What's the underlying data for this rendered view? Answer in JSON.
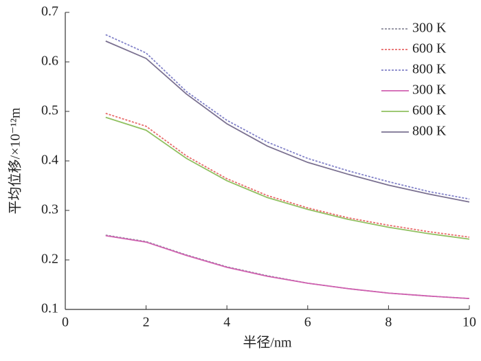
{
  "chart_data": {
    "type": "line",
    "x_label": "半径/nm",
    "y_label": "平均位移/×10⁻¹²m",
    "x": [
      1,
      2,
      3,
      4,
      5,
      6,
      7,
      8,
      9,
      10
    ],
    "series": [
      {
        "name": "300 K",
        "color": "#8a8a9a",
        "dashed": true,
        "values": [
          0.25,
          0.237,
          0.21,
          0.186,
          0.168,
          0.153,
          0.142,
          0.133,
          0.127,
          0.122
        ]
      },
      {
        "name": "600 K",
        "color": "#e86a6a",
        "dashed": true,
        "values": [
          0.496,
          0.47,
          0.41,
          0.364,
          0.33,
          0.305,
          0.285,
          0.27,
          0.257,
          0.246
        ]
      },
      {
        "name": "800 K",
        "color": "#8080c8",
        "dashed": true,
        "values": [
          0.655,
          0.618,
          0.54,
          0.482,
          0.438,
          0.405,
          0.38,
          0.358,
          0.338,
          0.323
        ]
      },
      {
        "name": "300 K",
        "color": "#d060b0",
        "dashed": false,
        "values": [
          0.249,
          0.236,
          0.209,
          0.185,
          0.167,
          0.153,
          0.142,
          0.133,
          0.127,
          0.122
        ]
      },
      {
        "name": "600 K",
        "color": "#90c060",
        "dashed": false,
        "values": [
          0.488,
          0.462,
          0.405,
          0.36,
          0.326,
          0.302,
          0.282,
          0.266,
          0.253,
          0.242
        ]
      },
      {
        "name": "800 K",
        "color": "#7a7090",
        "dashed": false,
        "values": [
          0.642,
          0.607,
          0.535,
          0.475,
          0.43,
          0.397,
          0.373,
          0.351,
          0.333,
          0.317
        ]
      }
    ],
    "xlim": [
      0,
      10
    ],
    "xticks": [
      0,
      2,
      4,
      6,
      8,
      10
    ],
    "ylim": [
      0.1,
      0.7
    ],
    "yticks": [
      0.1,
      0.2,
      0.3,
      0.4,
      0.5,
      0.6,
      0.7
    ],
    "legend": "upper right"
  }
}
